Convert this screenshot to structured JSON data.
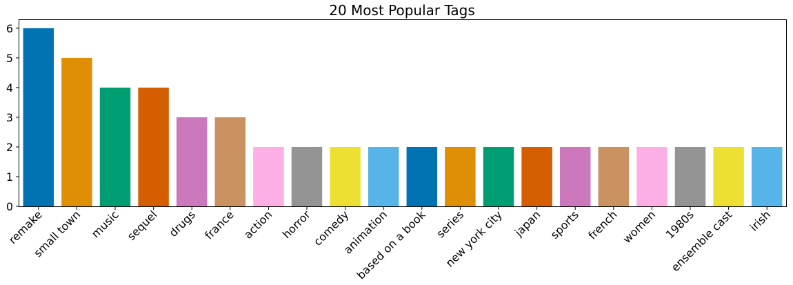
{
  "chart_data": {
    "type": "bar",
    "title": "20 Most Popular Tags",
    "xlabel": "",
    "ylabel": "",
    "ylim": [
      0,
      6.3
    ],
    "yticks": [
      0,
      1,
      2,
      3,
      4,
      5,
      6
    ],
    "grid": false,
    "categories": [
      "remake",
      "small town",
      "music",
      "sequel",
      "drugs",
      "france",
      "action",
      "horror",
      "comedy",
      "animation",
      "based on a book",
      "series",
      "new york city",
      "japan",
      "sports",
      "french",
      "women",
      "1980s",
      "ensemble cast",
      "irish"
    ],
    "values": [
      6,
      5,
      4,
      4,
      3,
      3,
      2,
      2,
      2,
      2,
      2,
      2,
      2,
      2,
      2,
      2,
      2,
      2,
      2,
      2
    ],
    "colors": [
      "#0173b2",
      "#de8f05",
      "#029e73",
      "#d55e00",
      "#cc78bc",
      "#ca9161",
      "#fbafe4",
      "#949494",
      "#ece133",
      "#56b4e9",
      "#0173b2",
      "#de8f05",
      "#029e73",
      "#d55e00",
      "#cc78bc",
      "#ca9161",
      "#fbafe4",
      "#949494",
      "#ece133",
      "#56b4e9"
    ]
  }
}
